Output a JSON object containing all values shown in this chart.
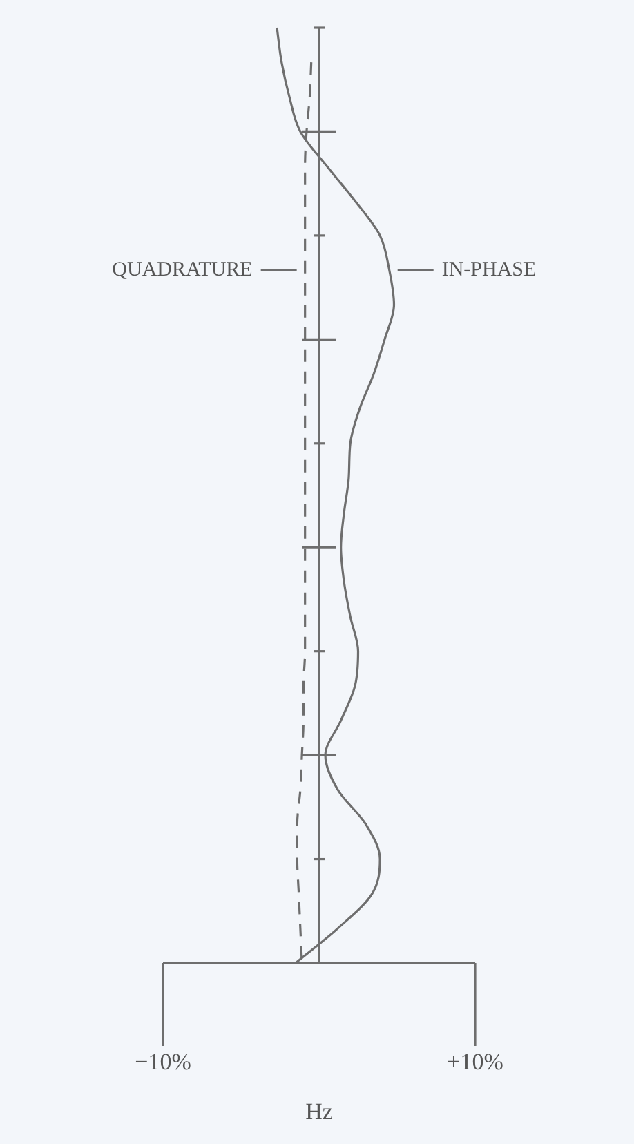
{
  "chart_data": {
    "type": "line",
    "orientation": "horizontal",
    "xlabel": "Hz",
    "categories": [
      null,
      null,
      null,
      null,
      null,
      null,
      null,
      null,
      null,
      null,
      null,
      null,
      null,
      null,
      null,
      null,
      null,
      null,
      null,
      null,
      null,
      null,
      null,
      null,
      null,
      null,
      null,
      null
    ],
    "xlim": [
      -10,
      10
    ],
    "xticks": [
      {
        "value": -10,
        "label": "−10%"
      },
      {
        "value": 10,
        "label": "+10%"
      }
    ],
    "grid": false,
    "marker": "none",
    "ref_lines": [
      {
        "axis": "x",
        "value": 0
      }
    ],
    "series": [
      {
        "name": "IN-PHASE",
        "color": "#6e6e6e",
        "line_style": "solid",
        "values": [
          -2.7,
          -2.4,
          -1.9,
          -1.2,
          0.5,
          2.3,
          3.9,
          4.5,
          4.8,
          4.2,
          3.5,
          2.6,
          2.0,
          1.9,
          1.6,
          1.4,
          1.6,
          2.0,
          2.5,
          2.3,
          1.4,
          0.4,
          1.2,
          3.0,
          3.9,
          3.4,
          1.2,
          -1.5
        ]
      },
      {
        "name": "QUADRATURE",
        "color": "#6e6e6e",
        "line_style": "dashed",
        "values": [
          null,
          -0.5,
          -0.6,
          -0.8,
          -0.9,
          -0.9,
          -0.9,
          -0.9,
          -0.9,
          -0.9,
          -0.9,
          -0.9,
          -0.9,
          -0.9,
          -0.9,
          -0.9,
          -0.9,
          -0.9,
          -0.9,
          -1.0,
          -1.0,
          -1.1,
          -1.2,
          -1.4,
          -1.4,
          -1.3,
          -1.2,
          -1.1
        ]
      }
    ]
  }
}
